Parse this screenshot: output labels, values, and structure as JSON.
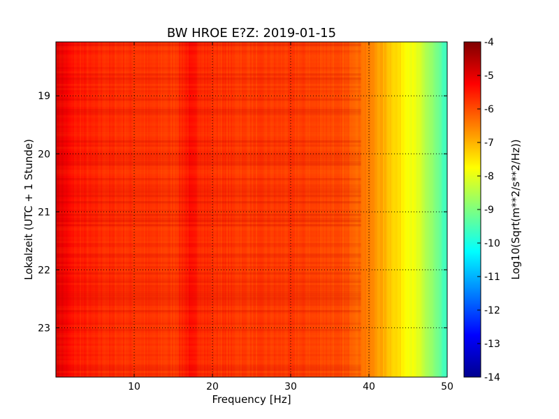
{
  "chart_data": {
    "type": "heatmap",
    "title": "BW HROE E?Z: 2019-01-15",
    "xlabel": "Frequency [Hz]",
    "ylabel": "Lokalzeit (UTC + 1 Stunde)",
    "xlim": [
      0,
      50
    ],
    "ylim": [
      18.07,
      23.85
    ],
    "x_ticks": [
      "10",
      "20",
      "30",
      "40",
      "50"
    ],
    "y_ticks": [
      "19",
      "20",
      "21",
      "22",
      "23"
    ],
    "grid": true,
    "colorbar": {
      "label": "Log10(Sqrt(m**2/s**2/Hz))",
      "range": [
        -14,
        -4
      ],
      "ticks": [
        "-4",
        "-5",
        "-6",
        "-7",
        "-8",
        "-9",
        "-10",
        "-11",
        "-12",
        "-13",
        "-14"
      ],
      "colormap": "jet"
    },
    "spectral_profile": {
      "frequency_hz": [
        0,
        1,
        2,
        5,
        10,
        15,
        17,
        20,
        25,
        30,
        35,
        38,
        40,
        42,
        44,
        46,
        48,
        50
      ],
      "log10_amplitude": [
        -4.9,
        -5.1,
        -5.4,
        -5.6,
        -5.7,
        -5.8,
        -5.4,
        -5.7,
        -5.8,
        -5.8,
        -5.9,
        -6.1,
        -6.5,
        -7.0,
        -7.5,
        -8.0,
        -8.8,
        -9.8
      ]
    }
  }
}
